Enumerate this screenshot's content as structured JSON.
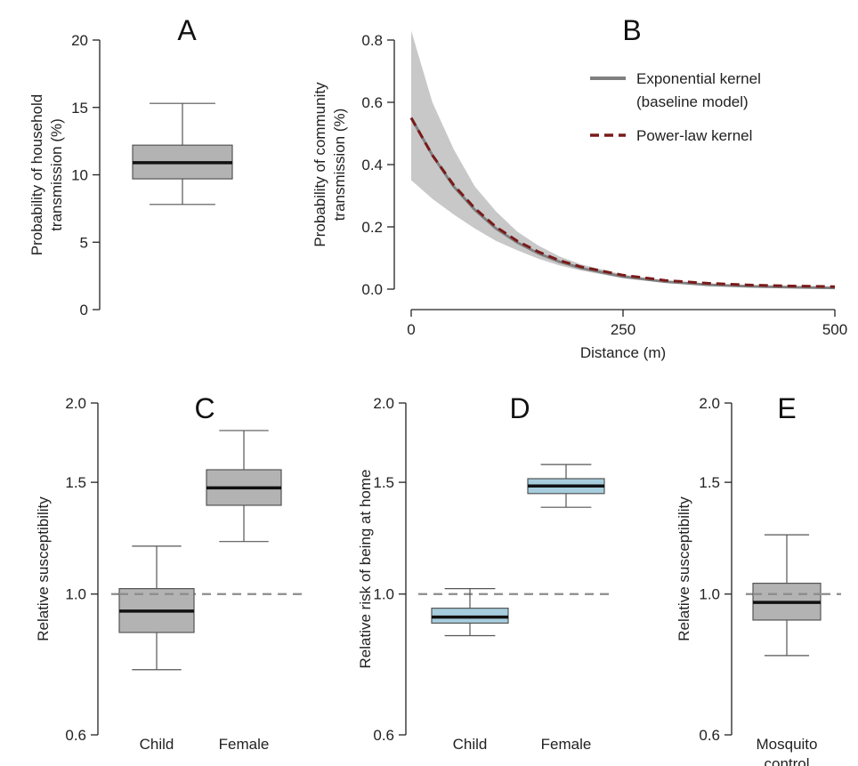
{
  "colors": {
    "box_gray": "#b3b3b3",
    "box_blue": "#a6cddd",
    "band": "#c8c8c8",
    "exp_line": "#808080",
    "power_line": "#7a1a1a",
    "ref_line": "#8c8c8c",
    "axis": "#222222"
  },
  "chart_data": [
    {
      "id": "A",
      "type": "box",
      "panel_label": "A",
      "ylabel_lines": [
        "Probability of household",
        "transmission (%)"
      ],
      "ylim": [
        0,
        20
      ],
      "yticks": [
        0,
        5,
        10,
        15,
        20
      ],
      "boxes": [
        {
          "label": "",
          "whisker_low": 7.8,
          "q1": 9.7,
          "median": 10.9,
          "q3": 12.2,
          "whisker_high": 15.3,
          "color": "gray"
        }
      ]
    },
    {
      "id": "B",
      "type": "line",
      "panel_label": "B",
      "xlabel": "Distance (m)",
      "ylabel_lines": [
        "Probability of community",
        "transmission (%)"
      ],
      "xlim": [
        0,
        500
      ],
      "ylim": [
        0,
        0.8
      ],
      "xticks": [
        0,
        250,
        500
      ],
      "yticks": [
        0.0,
        0.2,
        0.4,
        0.6,
        0.8
      ],
      "ytick_labels": [
        "0.0",
        "0.2",
        "0.4",
        "0.6",
        "0.8"
      ],
      "legend": {
        "position": "top-right",
        "entries": [
          {
            "lines": [
              "Exponential kernel",
              "(baseline model)"
            ],
            "style": "solid-gray"
          },
          {
            "lines": [
              "Power-law kernel"
            ],
            "style": "dashed-red"
          }
        ]
      },
      "x": [
        0,
        25,
        50,
        75,
        100,
        125,
        150,
        175,
        200,
        250,
        300,
        350,
        400,
        450,
        500
      ],
      "series": [
        {
          "name": "Exponential kernel (baseline model)",
          "style": "solid-gray",
          "values": [
            0.55,
            0.43,
            0.33,
            0.255,
            0.195,
            0.15,
            0.115,
            0.088,
            0.068,
            0.04,
            0.024,
            0.014,
            0.009,
            0.006,
            0.004
          ]
        },
        {
          "name": "Power-law kernel",
          "style": "dashed-red",
          "values": [
            0.55,
            0.43,
            0.335,
            0.26,
            0.2,
            0.155,
            0.12,
            0.092,
            0.072,
            0.045,
            0.028,
            0.019,
            0.013,
            0.01,
            0.008
          ]
        }
      ],
      "band": {
        "lower": [
          0.35,
          0.29,
          0.24,
          0.195,
          0.155,
          0.125,
          0.098,
          0.076,
          0.06,
          0.035,
          0.021,
          0.012,
          0.007,
          0.004,
          0.002
        ],
        "upper": [
          0.83,
          0.6,
          0.45,
          0.33,
          0.25,
          0.185,
          0.14,
          0.105,
          0.08,
          0.047,
          0.028,
          0.017,
          0.011,
          0.007,
          0.005
        ]
      }
    },
    {
      "id": "C",
      "type": "box",
      "panel_label": "C",
      "ylabel_lines": [
        "Relative susceptibility"
      ],
      "scale": "log",
      "ylim": [
        0.6,
        2.0
      ],
      "yticks": [
        0.6,
        1.0,
        1.5,
        2.0
      ],
      "ytick_labels": [
        "0.6",
        "1.0",
        "1.5",
        "2.0"
      ],
      "ref_line": 1.0,
      "boxes": [
        {
          "label": "Child",
          "whisker_low": 0.76,
          "q1": 0.87,
          "median": 0.94,
          "q3": 1.02,
          "whisker_high": 1.19,
          "color": "gray"
        },
        {
          "label": "Female",
          "whisker_low": 1.21,
          "q1": 1.38,
          "median": 1.47,
          "q3": 1.57,
          "whisker_high": 1.81,
          "color": "gray"
        }
      ]
    },
    {
      "id": "D",
      "type": "box",
      "panel_label": "D",
      "ylabel_lines": [
        "Relative risk of being at home"
      ],
      "scale": "log",
      "ylim": [
        0.6,
        2.0
      ],
      "yticks": [
        0.6,
        1.0,
        1.5,
        2.0
      ],
      "ytick_labels": [
        "0.6",
        "1.0",
        "1.5",
        "2.0"
      ],
      "ref_line": 1.0,
      "boxes": [
        {
          "label": "Child",
          "whisker_low": 0.86,
          "q1": 0.9,
          "median": 0.92,
          "q3": 0.95,
          "whisker_high": 1.02,
          "color": "blue"
        },
        {
          "label": "Female",
          "whisker_low": 1.37,
          "q1": 1.44,
          "median": 1.48,
          "q3": 1.52,
          "whisker_high": 1.6,
          "color": "blue"
        }
      ]
    },
    {
      "id": "E",
      "type": "box",
      "panel_label": "E",
      "ylabel_lines": [
        "Relative susceptibility"
      ],
      "scale": "log",
      "ylim": [
        0.6,
        2.0
      ],
      "yticks": [
        0.6,
        1.0,
        1.5,
        2.0
      ],
      "ytick_labels": [
        "0.6",
        "1.0",
        "1.5",
        "2.0"
      ],
      "ref_line": 1.0,
      "boxes": [
        {
          "label": "Mosquito\ncontrol",
          "label_lines": [
            "Mosquito",
            "control"
          ],
          "whisker_low": 0.8,
          "q1": 0.91,
          "median": 0.97,
          "q3": 1.04,
          "whisker_high": 1.24,
          "color": "gray"
        }
      ]
    }
  ]
}
